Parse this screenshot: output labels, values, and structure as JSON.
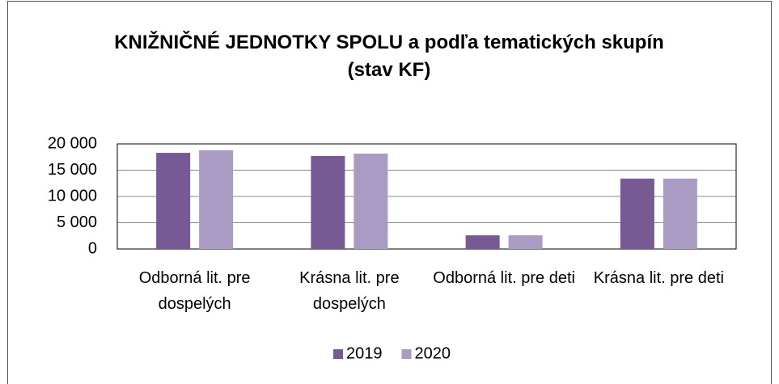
{
  "chart_data": {
    "type": "bar",
    "title": "KNIŽNIČNÉ JEDNOTKY SPOLU a podľa tematických skupín (stav KF)",
    "categories": [
      "Odborná lit. pre dospelých",
      "Krásna lit. pre dospelých",
      "Odborná lit. pre deti",
      "Krásna lit. pre deti"
    ],
    "series": [
      {
        "name": "2019",
        "color": "#775a93",
        "values": [
          18300,
          17700,
          2600,
          13400
        ]
      },
      {
        "name": "2020",
        "color": "#a99bc3",
        "values": [
          18800,
          18150,
          2600,
          13400
        ]
      }
    ],
    "ylim": [
      0,
      20000
    ],
    "yticks": [
      0,
      {
        "value": 5000,
        "label": "5 000"
      },
      {
        "value": 10000,
        "label": "10 000"
      },
      {
        "value": 15000,
        "label": "15 000"
      },
      {
        "value": 20000,
        "label": "20 000"
      }
    ],
    "grid": true,
    "legend": "bottom"
  }
}
